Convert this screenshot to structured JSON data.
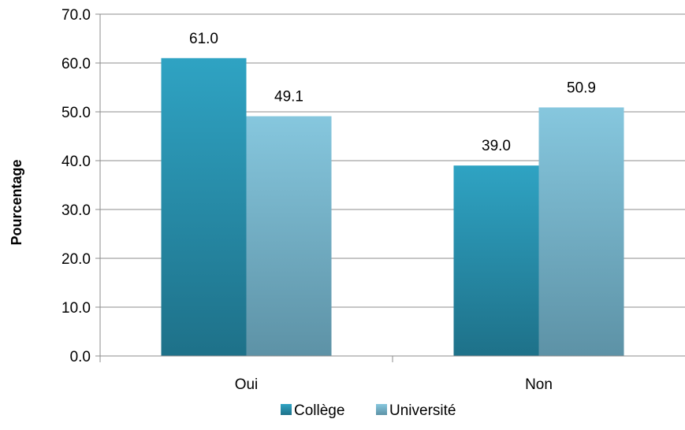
{
  "chart_data": {
    "type": "bar",
    "categories": [
      "Oui",
      "Non"
    ],
    "series": [
      {
        "name": "Collège",
        "values": [
          61.0,
          39.0
        ],
        "color_top": "#2fa3c3",
        "color_bottom": "#1e7189"
      },
      {
        "name": "Université",
        "values": [
          49.1,
          50.9
        ],
        "color_top": "#86c7de",
        "color_bottom": "#5d92a6"
      }
    ],
    "ylabel": "Pourcentage",
    "xlabel": "",
    "ylim": [
      0,
      70
    ],
    "yticks": [
      "0.0",
      "10.0",
      "20.0",
      "30.0",
      "40.0",
      "50.0",
      "60.0",
      "70.0"
    ],
    "data_labels": [
      [
        "61.0",
        "39.0"
      ],
      [
        "49.1",
        "50.9"
      ]
    ],
    "grid": true,
    "legend_position": "bottom"
  }
}
